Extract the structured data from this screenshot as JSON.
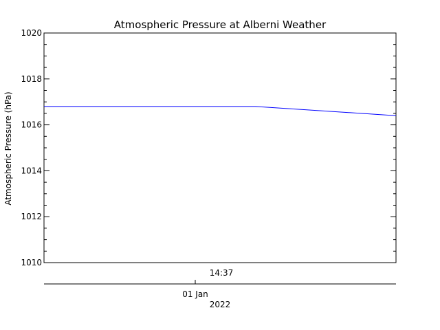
{
  "chart_data": {
    "type": "line",
    "title": "Atmospheric Pressure at Alberni Weather",
    "ylabel": "Atmospheric Pressure (hPa)",
    "xlabel": "",
    "ylim": [
      1010,
      1020
    ],
    "y_ticks": [
      {
        "value": 1010,
        "label": "1010"
      },
      {
        "value": 1012,
        "label": "1012"
      },
      {
        "value": 1014,
        "label": "1014"
      },
      {
        "value": 1016,
        "label": "1016"
      },
      {
        "value": 1018,
        "label": "1018"
      },
      {
        "value": 1020,
        "label": "1020"
      }
    ],
    "x_time_label": "14:37",
    "x_date_label": "01 Jan",
    "x_year_label": "2022",
    "series": [
      {
        "color": "#0000ff",
        "x": [
          0.0,
          0.6,
          1.0
        ],
        "values": [
          1016.8,
          1016.8,
          1016.4
        ]
      }
    ],
    "grid": false,
    "legend": "none"
  }
}
